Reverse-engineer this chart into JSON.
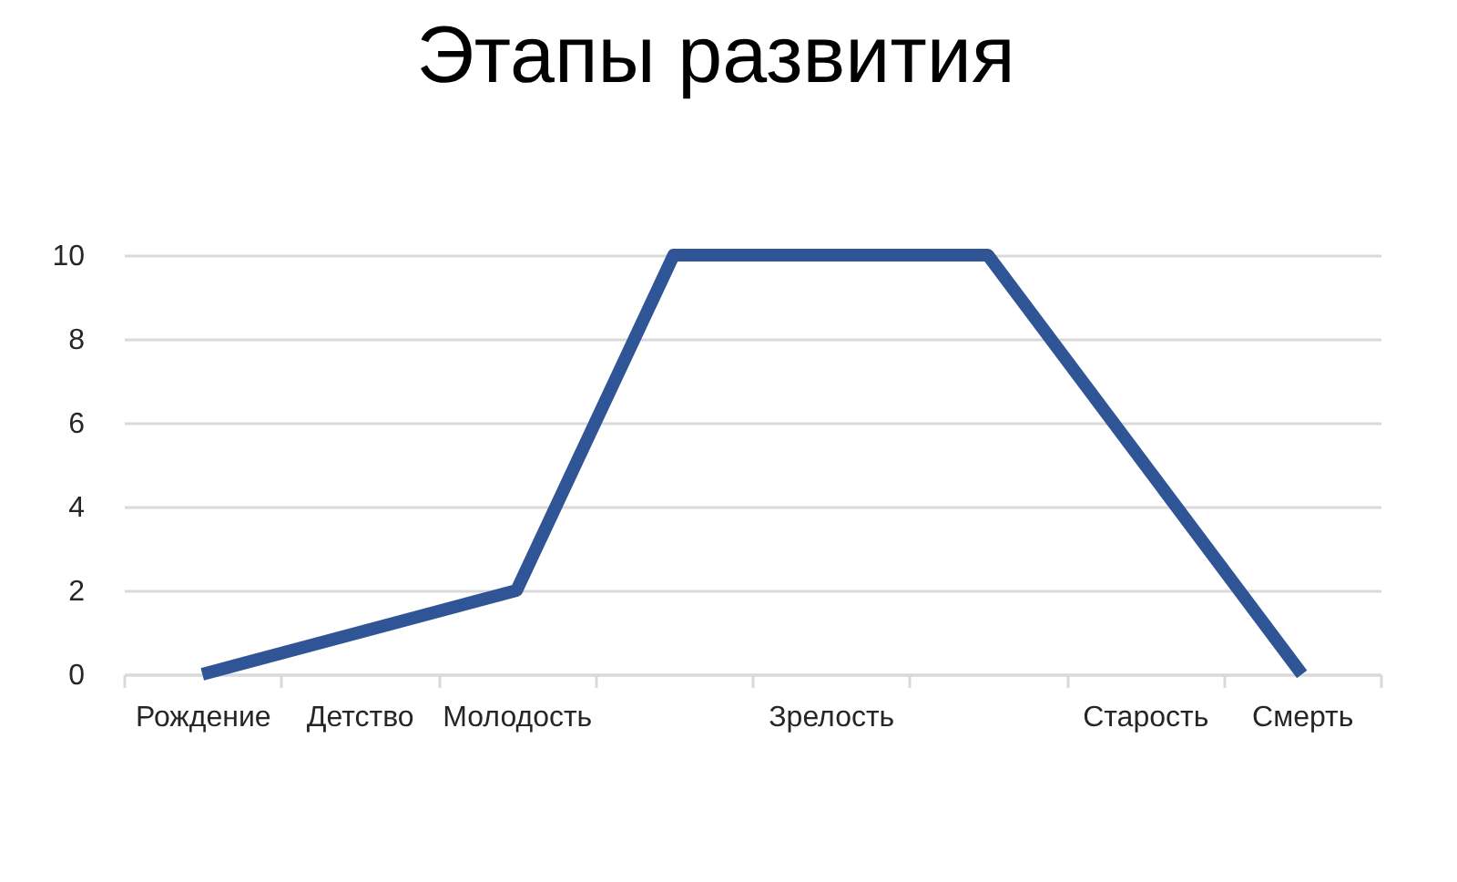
{
  "chart_data": {
    "type": "line",
    "title": "Этапы развития",
    "categories": [
      "Рождение",
      "Детство",
      "Молодость",
      null,
      "Зрелость",
      null,
      "Старость",
      "Смерть"
    ],
    "values": [
      0,
      1,
      2,
      10,
      10,
      10,
      5,
      0
    ],
    "color": "#2f5597",
    "ylim": [
      0,
      10
    ],
    "yticks": [
      0,
      2,
      4,
      6,
      8,
      10
    ],
    "grid": "y"
  }
}
